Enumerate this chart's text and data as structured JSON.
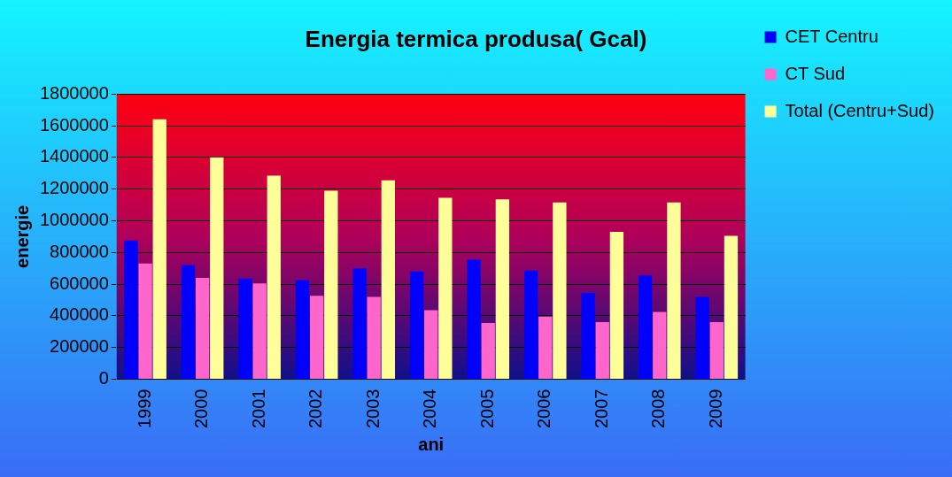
{
  "chart_data": {
    "type": "bar",
    "title": "Energia termica produsa( Gcal)",
    "xlabel": "ani",
    "ylabel": "energie",
    "categories": [
      "1999",
      "2000",
      "2001",
      "2002",
      "2003",
      "2004",
      "2005",
      "2006",
      "2007",
      "2008",
      "2009"
    ],
    "series": [
      {
        "name": "CET Centru",
        "color": "#0000ff",
        "values": [
          875000,
          720000,
          635000,
          625000,
          700000,
          680000,
          755000,
          685000,
          545000,
          655000,
          520000
        ]
      },
      {
        "name": "CT Sud",
        "color": "#ff66cc",
        "values": [
          730000,
          640000,
          605000,
          527000,
          520000,
          435000,
          355000,
          395000,
          360000,
          425000,
          360000
        ]
      },
      {
        "name": "Total (Centru+Sud)",
        "color": "#ffff99",
        "values": [
          1640000,
          1400000,
          1285000,
          1190000,
          1255000,
          1145000,
          1135000,
          1115000,
          930000,
          1115000,
          905000
        ]
      }
    ],
    "ylim": [
      0,
      1800000
    ],
    "yticks": [
      0,
      200000,
      400000,
      600000,
      800000,
      1000000,
      1200000,
      1400000,
      1600000,
      1800000
    ],
    "grid": "y",
    "legend": "right"
  }
}
